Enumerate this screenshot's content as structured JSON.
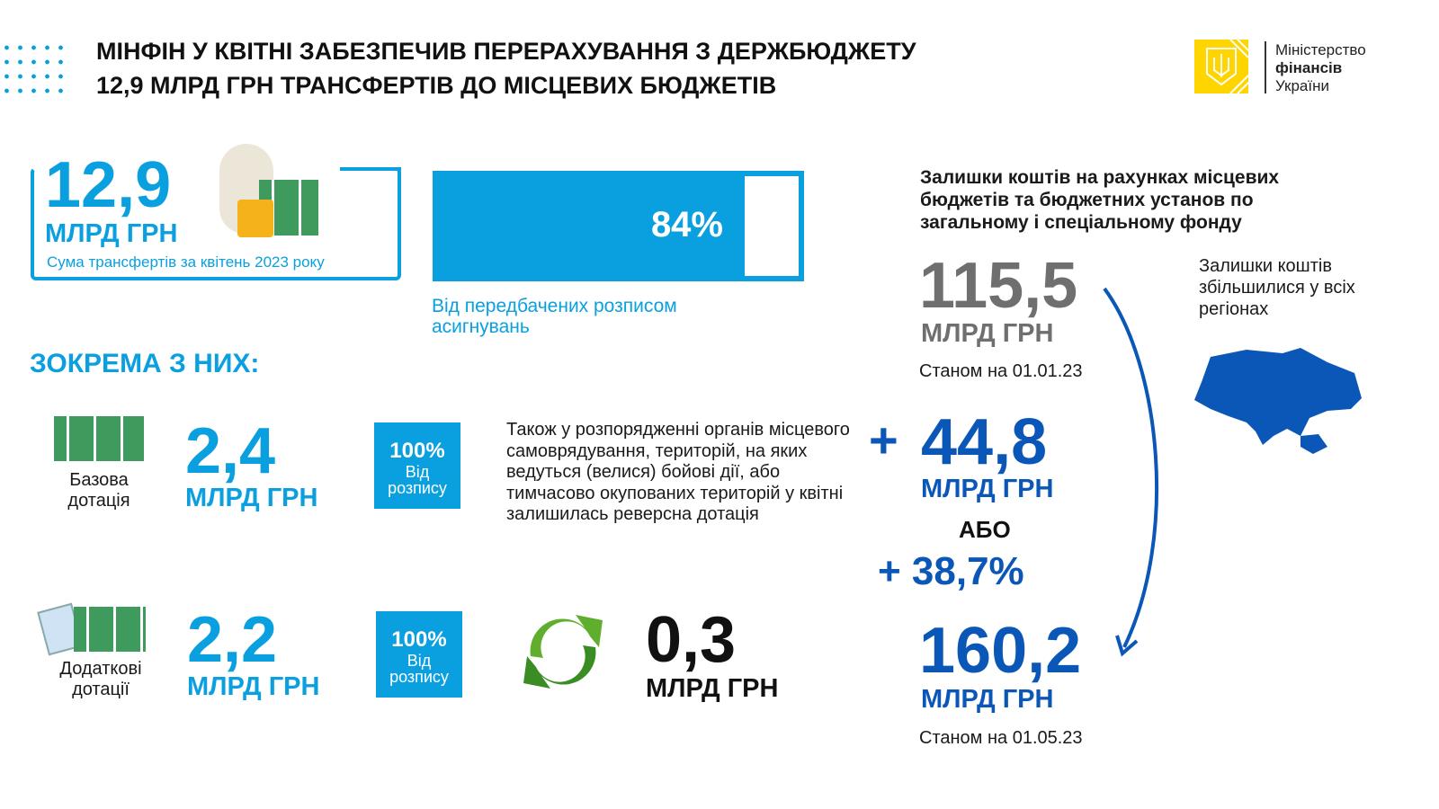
{
  "header": {
    "title_line1": "МІНФІН У КВІТНІ ЗАБЕЗПЕЧИВ ПЕРЕРАХУВАННЯ З ДЕРЖБЮДЖЕТУ",
    "title_line2": "12,9 МЛРД ГРН ТРАНСФЕРТІВ ДО МІСЦЕВИХ БЮДЖЕТІВ"
  },
  "logo": {
    "line1": "Міністерство",
    "line2": "фінансів",
    "line3": "України"
  },
  "total": {
    "value": "12,9",
    "unit": "МЛРД ГРН",
    "caption": "Сума трансфертів за квітень 2023 року"
  },
  "progress": {
    "label": "84%",
    "percent": 84,
    "caption": "Від передбачених розписом асигнувань"
  },
  "section_title": "ЗОКРЕМА З НИХ:",
  "basic": {
    "label": "Базова дотація",
    "value": "2,4",
    "unit": "МЛРД ГРН",
    "tag_pct": "100%",
    "tag_text": "Від розпису"
  },
  "additional": {
    "label": "Додаткові дотації",
    "value": "2,2",
    "unit": "МЛРД ГРН",
    "tag_pct": "100%",
    "tag_text": "Від розпису"
  },
  "reverse": {
    "text": "Також у розпорядженні органів місцевого самоврядування, територій, на яких ведуться (велися) бойові дії, або тимчасово окупованих територій у квітні залишилась реверсна дотація",
    "value": "0,3",
    "unit": "МЛРД ГРН"
  },
  "balances": {
    "heading": "Залишки коштів на рахунках місцевих бюджетів та бюджетних установ по загальному і спеціальному фонду",
    "start_value": "115,5",
    "start_unit": "МЛРД ГРН",
    "start_date": "Станом на 01.01.23",
    "plus_sign": "+",
    "increase_value": "44,8",
    "increase_unit": "МЛРД ГРН",
    "or": "АБО",
    "increase_pct": "+ 38,7%",
    "end_value": "160,2",
    "end_unit": "МЛРД ГРН",
    "end_date": "Станом на 01.05.23",
    "note": "Залишки коштів збільшилися у всіх регіонах"
  },
  "colors": {
    "light_blue": "#0aa0df",
    "dark_blue": "#0b57b8",
    "gray": "#6f6f6f",
    "yellow": "#ffd500"
  }
}
